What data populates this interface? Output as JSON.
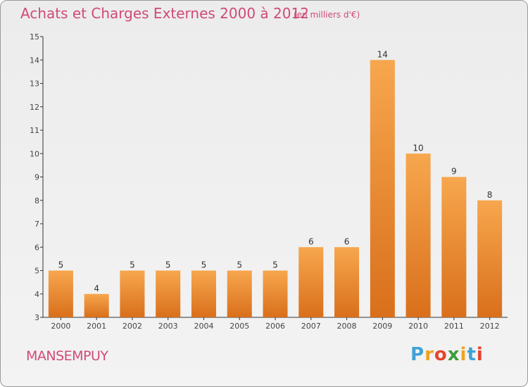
{
  "chart_data": {
    "type": "bar",
    "title": "Achats et Charges Externes 2000 à 2012",
    "unit_label": "(en milliers d'€)",
    "categories": [
      "2000",
      "2001",
      "2002",
      "2003",
      "2004",
      "2005",
      "2006",
      "2007",
      "2008",
      "2009",
      "2010",
      "2011",
      "2012"
    ],
    "values": [
      5,
      4,
      5,
      5,
      5,
      5,
      5,
      6,
      6,
      14,
      10,
      9,
      8
    ],
    "ylim": [
      3,
      15
    ],
    "yticks": [
      3,
      4,
      5,
      6,
      7,
      8,
      9,
      10,
      11,
      12,
      13,
      14,
      15
    ],
    "grid": false,
    "bar_color_top": "#f7a74e",
    "bar_color_bottom": "#d96f1b"
  },
  "location": "MANSEMPUY",
  "logo": {
    "letters": [
      "P",
      "r",
      "o",
      "x",
      "i",
      "t",
      "i"
    ],
    "colors": [
      "#3fa2d6",
      "#f0a21e",
      "#e6432e",
      "#3c9b3c",
      "#f0a21e",
      "#3fa2d6",
      "#e6432e"
    ]
  },
  "colors": {
    "accent": "#d04a76",
    "axis": "#333333"
  }
}
